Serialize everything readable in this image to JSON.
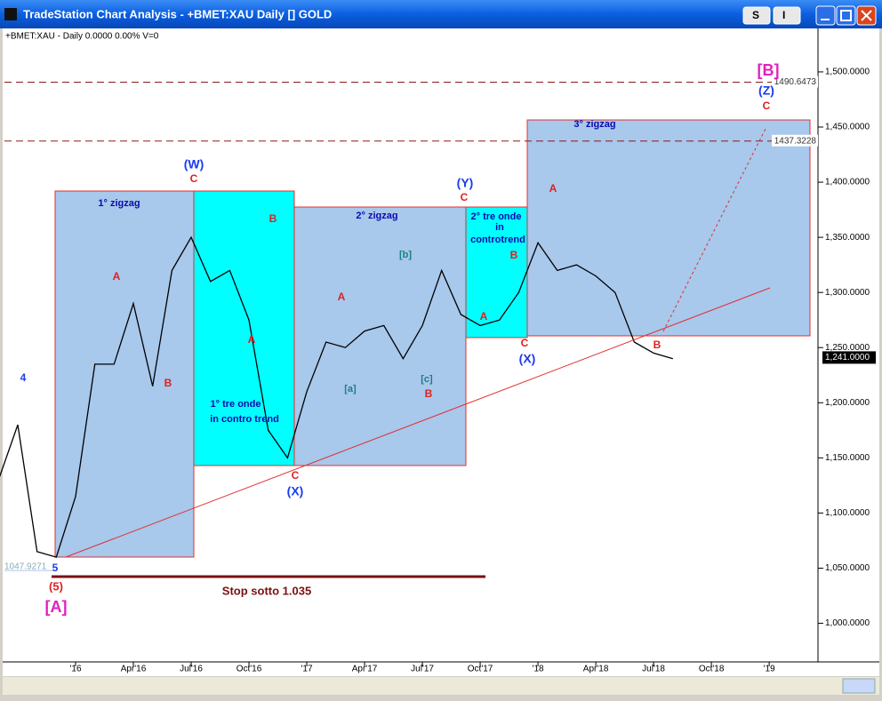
{
  "window": {
    "title": "TradeStation Chart Analysis - +BMET:XAU Daily [] GOLD",
    "buttons": [
      "S",
      "I"
    ]
  },
  "status": "+BMET:XAU - Daily  0.0000  0.00%  V=0",
  "chart_data": {
    "type": "line",
    "color": "#000000",
    "categories": [
      null,
      null,
      null,
      null,
      "'16",
      null,
      null,
      "Apr'16",
      null,
      null,
      "Jul'16",
      null,
      null,
      "Oct'16",
      null,
      null,
      "'17",
      null,
      null,
      "Apr'17",
      null,
      null,
      "Jul'17",
      null,
      null,
      "Oct'17",
      null,
      null,
      "'18",
      null,
      null,
      "Apr'18",
      null,
      null,
      "Jul'18",
      null,
      null,
      "Oct'18",
      null,
      null,
      "'19",
      null,
      null
    ],
    "values": [
      1130,
      1180,
      1065,
      1060,
      1115,
      1235,
      1235,
      1290,
      1215,
      1320,
      1350,
      1310,
      1320,
      1275,
      1175,
      1150,
      1210,
      1255,
      1250,
      1265,
      1270,
      1240,
      1270,
      1320,
      1280,
      1270,
      1275,
      1300,
      1345,
      1320,
      1325,
      1315,
      1300,
      1255,
      1245,
      1240,
      null,
      null,
      null,
      null,
      null,
      null,
      null
    ],
    "ylim": [
      965,
      1537
    ],
    "yticks": [
      {
        "value": 1000,
        "label": "1,000.0000"
      },
      {
        "value": 1050,
        "label": "1,050.0000"
      },
      {
        "value": 1100,
        "label": "1,100.0000"
      },
      {
        "value": 1150,
        "label": "1,150.0000"
      },
      {
        "value": 1200,
        "label": "1,200.0000"
      },
      {
        "value": 1250,
        "label": "1,250.0000"
      },
      {
        "value": 1300,
        "label": "1,300.0000"
      },
      {
        "value": 1350,
        "label": "1,350.0000"
      },
      {
        "value": 1400,
        "label": "1,400.0000"
      },
      {
        "value": 1450,
        "label": "1,450.0000"
      },
      {
        "value": 1500,
        "label": "1,500.0000"
      }
    ],
    "levels": [
      {
        "value": 1490.6473,
        "label": "1490.6473"
      },
      {
        "value": 1437.3228,
        "label": "1437.3228"
      },
      {
        "value": 1047.9271,
        "label": "1047.9271"
      },
      {
        "value": 1241,
        "label": "1,241.0000"
      }
    ],
    "annotations": [
      "(W)",
      "C",
      "1° zigzag",
      "A",
      "B",
      "B",
      "A",
      "1° tre onde",
      "in contro trend",
      "C",
      "(X)",
      "2° zigzag",
      "[b]",
      "A",
      "[a]",
      "[c]",
      "B",
      "(Y)",
      "C",
      "2° tre onde",
      "in",
      "controtrend",
      "B",
      "A",
      "C",
      "(X)",
      "3° zigzag",
      "A",
      "B",
      "[B]",
      "(Z)",
      "C",
      "4",
      "5",
      "(5)",
      "[A]",
      "Stop sotto 1.035"
    ]
  }
}
